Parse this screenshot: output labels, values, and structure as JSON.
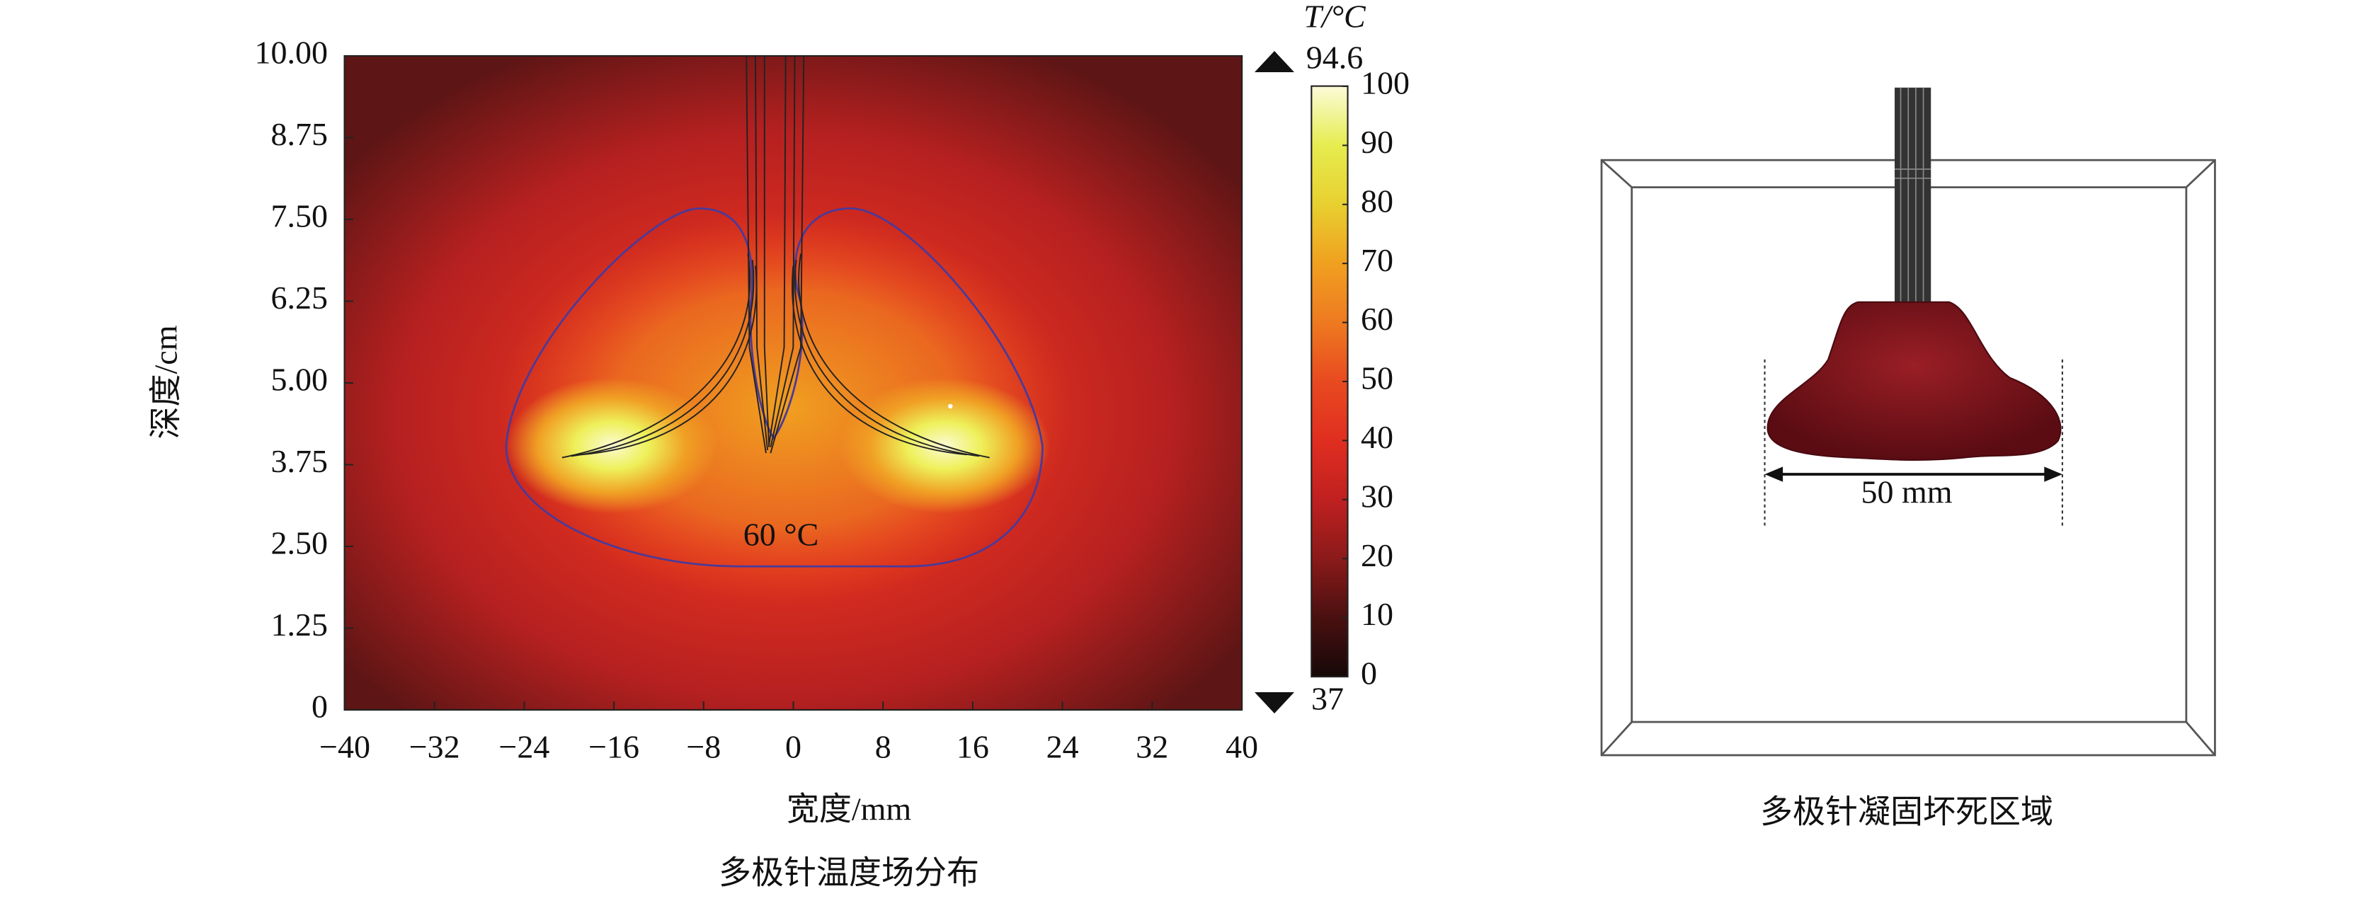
{
  "chart_data": [
    {
      "type": "heatmap",
      "title": "多极针温度场分布",
      "xlabel": "宽度/mm",
      "ylabel": "深度/cm",
      "xlim": [
        -40,
        40
      ],
      "xticks": [
        {
          "value": -40,
          "label": "−40"
        },
        {
          "value": -32,
          "label": "−32"
        },
        {
          "value": -24,
          "label": "−24"
        },
        {
          "value": -16,
          "label": "−16"
        },
        {
          "value": -8,
          "label": "−8"
        },
        0,
        8,
        16,
        24,
        32,
        40
      ],
      "ylim": [
        0,
        10
      ],
      "yticks": [
        0,
        {
          "value": 1.25,
          "label": "1.25"
        },
        {
          "value": 2.5,
          "label": "2.50"
        },
        {
          "value": 3.75,
          "label": "3.75"
        },
        {
          "value": 5,
          "label": "5.00"
        },
        {
          "value": 6.25,
          "label": "6.25"
        },
        {
          "value": 7.5,
          "label": "7.50"
        },
        {
          "value": 8.75,
          "label": "8.75"
        },
        {
          "value": 10,
          "label": "10.00"
        }
      ],
      "colorbar": {
        "label": "T/°C",
        "clim": [
          0,
          100
        ],
        "ticks": [
          0,
          10,
          20,
          30,
          40,
          50,
          60,
          70,
          80,
          90,
          100
        ],
        "max": 94.6,
        "min": 37
      },
      "annotation": "60 °C"
    },
    {
      "type": "render",
      "title": "多极针凝固坏死区域",
      "annotation": "50 mm"
    }
  ]
}
